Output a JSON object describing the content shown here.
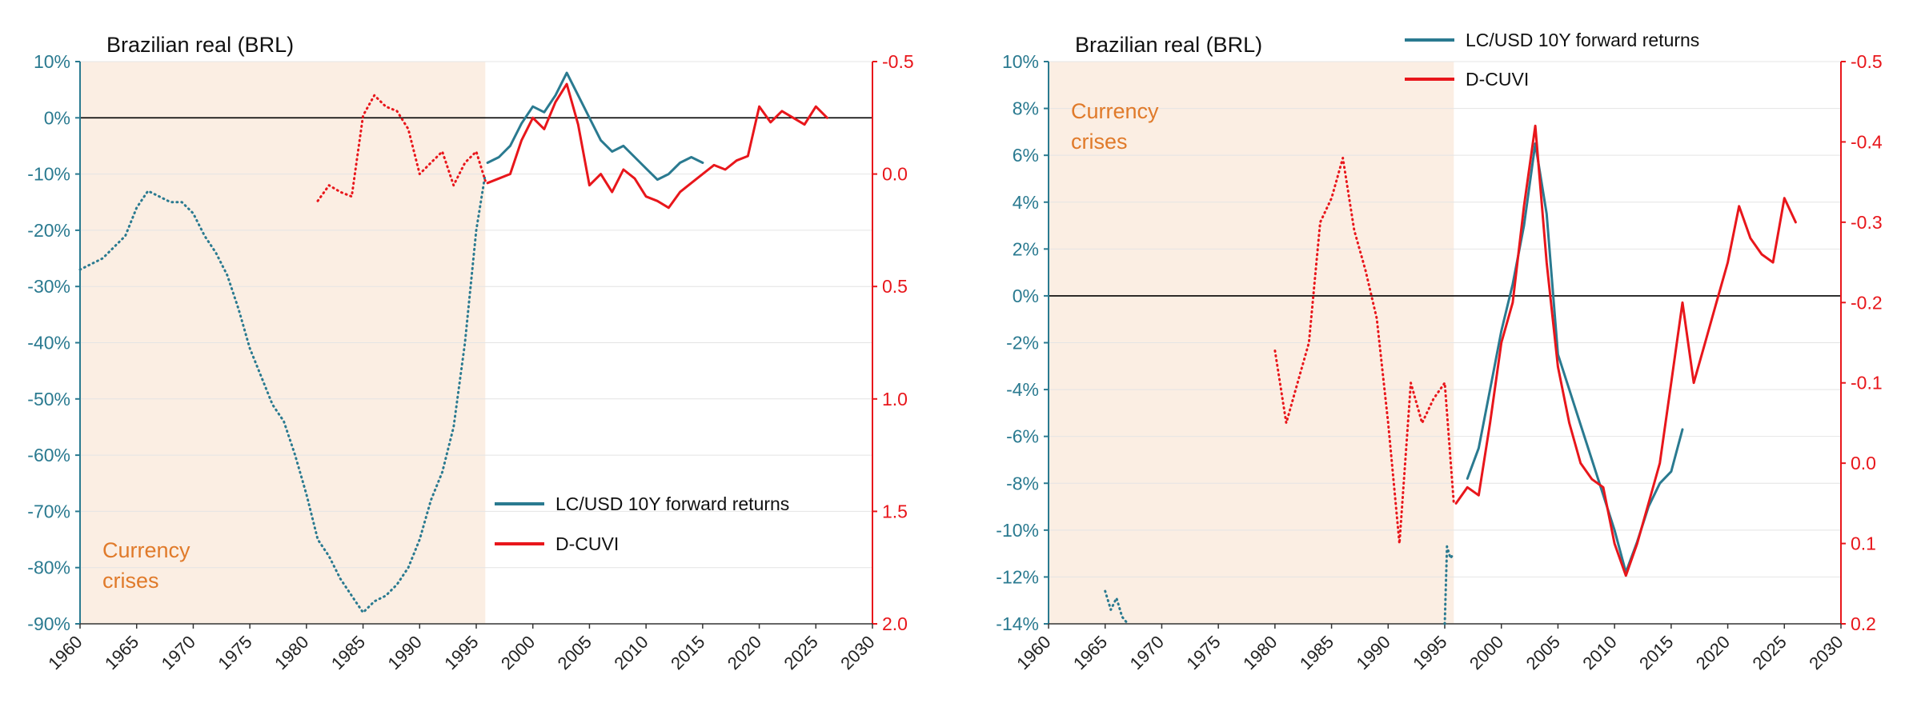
{
  "colors": {
    "returns": "#2a7a90",
    "dcuvi": "#e8161b",
    "shade": "#fbeee3",
    "annotation": "#e07a2a",
    "grid": "#e4e4e4",
    "zero_line": "#000000"
  },
  "chart_data": [
    {
      "type": "line",
      "title": "Brazilian real (BRL)",
      "annotation": [
        "Currency",
        "crises"
      ],
      "shaded_region": {
        "x": [
          1960,
          1995.8
        ],
        "label": "Currency crises"
      },
      "x_range": [
        1960,
        2030
      ],
      "x_ticks": [
        1960,
        1965,
        1970,
        1975,
        1980,
        1985,
        1990,
        1995,
        2000,
        2005,
        2010,
        2015,
        2020,
        2025,
        2030
      ],
      "y_left": {
        "range": [
          -90,
          10
        ],
        "ticks": [
          10,
          0,
          -10,
          -20,
          -30,
          -40,
          -50,
          -60,
          -70,
          -80,
          -90
        ],
        "tick_labels": [
          "10%",
          "0%",
          "-10%",
          "-20%",
          "-30%",
          "-40%",
          "-50%",
          "-60%",
          "-70%",
          "-80%",
          "-90%"
        ]
      },
      "y_right": {
        "range": [
          -0.5,
          2.0
        ],
        "inverted": true,
        "ticks": [
          -0.5,
          0.0,
          0.5,
          1.0,
          1.5,
          2.0
        ],
        "tick_labels": [
          "-0.5",
          "0.0",
          "0.5",
          "1.0",
          "1.5",
          "2.0"
        ]
      },
      "legend": [
        "LC/USD 10Y forward returns",
        "D-CUVI"
      ],
      "legend_position": "lower-right",
      "series": [
        {
          "name": "LC/USD 10Y forward returns",
          "axis": "left",
          "style": "dotted",
          "x": [
            1960,
            1961,
            1962,
            1963,
            1964,
            1965,
            1966,
            1967,
            1968,
            1969,
            1970,
            1971,
            1972,
            1973,
            1974,
            1975,
            1976,
            1977,
            1978,
            1979,
            1980,
            1981,
            1982,
            1983,
            1984,
            1985,
            1986,
            1987,
            1988,
            1989,
            1990,
            1991,
            1992,
            1993,
            1994,
            1995,
            1995.8
          ],
          "values": [
            -27,
            -26,
            -25,
            -23,
            -21,
            -16,
            -13,
            -14,
            -15,
            -15,
            -17,
            -21,
            -24,
            -28,
            -34,
            -41,
            -46,
            -51,
            -54,
            -60,
            -67,
            -75,
            -78,
            -82,
            -85,
            -88,
            -86,
            -85,
            -83,
            -80,
            -75,
            -68,
            -63,
            -55,
            -40,
            -20,
            -10
          ]
        },
        {
          "name": "LC/USD 10Y forward returns",
          "axis": "left",
          "style": "solid",
          "x": [
            1996,
            1997,
            1998,
            1999,
            2000,
            2001,
            2002,
            2003,
            2004,
            2005,
            2006,
            2007,
            2008,
            2009,
            2010,
            2011,
            2012,
            2013,
            2014,
            2015
          ],
          "values": [
            -8,
            -7,
            -5,
            -1,
            2,
            1,
            4,
            8,
            4,
            0,
            -4,
            -6,
            -5,
            -7,
            -9,
            -11,
            -10,
            -8,
            -7,
            -8
          ]
        },
        {
          "name": "D-CUVI",
          "axis": "right",
          "style": "dotted",
          "x": [
            1981,
            1982,
            1983,
            1984,
            1985,
            1986,
            1987,
            1988,
            1989,
            1990,
            1991,
            1992,
            1993,
            1994,
            1995,
            1995.8
          ],
          "values": [
            0.12,
            0.05,
            0.08,
            0.1,
            -0.26,
            -0.35,
            -0.3,
            -0.28,
            -0.2,
            0.0,
            -0.05,
            -0.1,
            0.05,
            -0.05,
            -0.1,
            0.03
          ]
        },
        {
          "name": "D-CUVI",
          "axis": "right",
          "style": "solid",
          "x": [
            1996,
            1997,
            1998,
            1999,
            2000,
            2001,
            2002,
            2003,
            2004,
            2005,
            2006,
            2007,
            2008,
            2009,
            2010,
            2011,
            2012,
            2013,
            2014,
            2015,
            2016,
            2017,
            2018,
            2019,
            2020,
            2021,
            2022,
            2023,
            2024,
            2025,
            2026
          ],
          "values": [
            0.04,
            0.02,
            0.0,
            -0.15,
            -0.25,
            -0.2,
            -0.32,
            -0.4,
            -0.22,
            0.05,
            0.0,
            0.08,
            -0.02,
            0.02,
            0.1,
            0.12,
            0.15,
            0.08,
            0.04,
            0.0,
            -0.04,
            -0.02,
            -0.06,
            -0.08,
            -0.3,
            -0.23,
            -0.28,
            -0.25,
            -0.22,
            -0.3,
            -0.25
          ]
        }
      ]
    },
    {
      "type": "line",
      "title": "Brazilian real (BRL)",
      "annotation": [
        "Currency",
        "crises"
      ],
      "shaded_region": {
        "x": [
          1960,
          1995.8
        ],
        "label": "Currency crises"
      },
      "x_range": [
        1960,
        2030
      ],
      "x_ticks": [
        1960,
        1965,
        1970,
        1975,
        1980,
        1985,
        1990,
        1995,
        2000,
        2005,
        2010,
        2015,
        2020,
        2025,
        2030
      ],
      "y_left": {
        "range": [
          -14,
          10
        ],
        "ticks": [
          10,
          8,
          6,
          4,
          2,
          0,
          -2,
          -4,
          -6,
          -8,
          -10,
          -12,
          -14
        ],
        "tick_labels": [
          "10%",
          "8%",
          "6%",
          "4%",
          "2%",
          "0%",
          "-2%",
          "-4%",
          "-6%",
          "-8%",
          "-10%",
          "-12%",
          "-14%"
        ]
      },
      "y_right": {
        "range": [
          -0.5,
          0.2
        ],
        "inverted": true,
        "ticks": [
          -0.5,
          -0.4,
          -0.3,
          -0.2,
          -0.1,
          0.0,
          0.1,
          0.2
        ],
        "tick_labels": [
          "-0.5",
          "-0.4",
          "-0.3",
          "-0.2",
          "-0.1",
          "0.0",
          "0.1",
          "0.2"
        ]
      },
      "legend": [
        "LC/USD 10Y forward returns",
        "D-CUVI"
      ],
      "legend_position": "top-center",
      "series": [
        {
          "name": "LC/USD 10Y forward returns",
          "axis": "left",
          "style": "dotted",
          "x": [
            1965,
            1965.5,
            1966,
            1966.5,
            1967
          ],
          "values": [
            -12.6,
            -13.4,
            -12.9,
            -13.7,
            -14
          ]
        },
        {
          "name": "LC/USD 10Y forward returns",
          "axis": "left",
          "style": "dotted",
          "x": [
            1995,
            1995.2,
            1995.5,
            1995.8
          ],
          "values": [
            -14,
            -10.7,
            -11.2,
            -11.0
          ]
        },
        {
          "name": "LC/USD 10Y forward returns",
          "axis": "left",
          "style": "solid",
          "x": [
            1997,
            1998,
            1999,
            2000,
            2001,
            2002,
            2003,
            2004,
            2005,
            2006,
            2007,
            2008,
            2009,
            2010,
            2011,
            2012,
            2013,
            2014,
            2015,
            2016
          ],
          "values": [
            -7.8,
            -6.5,
            -4.0,
            -1.5,
            0.5,
            3.0,
            6.5,
            3.5,
            -2.5,
            -4.0,
            -5.5,
            -7.0,
            -8.5,
            -10.0,
            -11.8,
            -10.5,
            -9.0,
            -8.0,
            -7.5,
            -5.7
          ]
        },
        {
          "name": "D-CUVI",
          "axis": "right",
          "style": "dotted",
          "x": [
            1980,
            1981,
            1982,
            1983,
            1984,
            1985,
            1986,
            1987,
            1988,
            1989,
            1990,
            1991,
            1992,
            1993,
            1994,
            1995,
            1995.8
          ],
          "values": [
            -0.14,
            -0.05,
            -0.1,
            -0.15,
            -0.3,
            -0.33,
            -0.38,
            -0.29,
            -0.24,
            -0.18,
            -0.05,
            0.1,
            -0.1,
            -0.05,
            -0.08,
            -0.1,
            0.05
          ]
        },
        {
          "name": "D-CUVI",
          "axis": "right",
          "style": "solid",
          "x": [
            1996,
            1997,
            1998,
            1999,
            2000,
            2001,
            2002,
            2003,
            2004,
            2005,
            2006,
            2007,
            2008,
            2009,
            2010,
            2011,
            2012,
            2013,
            2014,
            2015,
            2016,
            2017,
            2018,
            2019,
            2020,
            2021,
            2022,
            2023,
            2024,
            2025,
            2026
          ],
          "values": [
            0.05,
            0.03,
            0.04,
            -0.05,
            -0.15,
            -0.2,
            -0.32,
            -0.42,
            -0.25,
            -0.12,
            -0.05,
            0.0,
            0.02,
            0.03,
            0.1,
            0.14,
            0.1,
            0.05,
            0.0,
            -0.1,
            -0.2,
            -0.1,
            -0.15,
            -0.2,
            -0.25,
            -0.32,
            -0.28,
            -0.26,
            -0.25,
            -0.33,
            -0.3
          ]
        }
      ]
    }
  ]
}
